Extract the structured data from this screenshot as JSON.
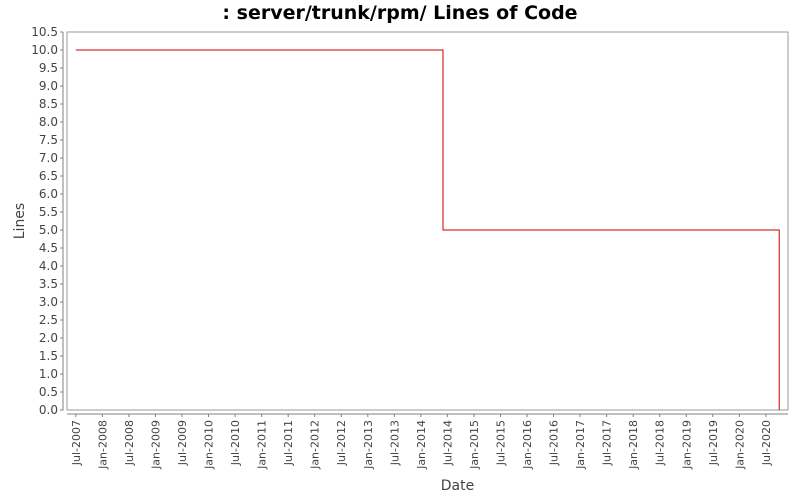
{
  "chart_data": {
    "type": "line",
    "title": ": server/trunk/rpm/ Lines of Code",
    "xlabel": "Date",
    "ylabel": "Lines",
    "ylim": [
      0,
      10.5
    ],
    "yticks": [
      "0.0",
      "0.5",
      "1.0",
      "1.5",
      "2.0",
      "2.5",
      "3.0",
      "3.5",
      "4.0",
      "4.5",
      "5.0",
      "5.5",
      "6.0",
      "6.5",
      "7.0",
      "7.5",
      "8.0",
      "8.5",
      "9.0",
      "9.5",
      "10.0",
      "10.5"
    ],
    "xticks": [
      "Jul-2007",
      "Jan-2008",
      "Jul-2008",
      "Jan-2009",
      "Jul-2009",
      "Jan-2010",
      "Jul-2010",
      "Jan-2011",
      "Jul-2011",
      "Jan-2012",
      "Jul-2012",
      "Jan-2013",
      "Jul-2013",
      "Jan-2014",
      "Jul-2014",
      "Jan-2015",
      "Jul-2015",
      "Jan-2016",
      "Jul-2016",
      "Jan-2017",
      "Jul-2017",
      "Jan-2018",
      "Jul-2018",
      "Jan-2019",
      "Jul-2019",
      "Jan-2020",
      "Jul-2020"
    ],
    "step": true,
    "grid": false,
    "series": [
      {
        "color": "#cc0000",
        "points": [
          {
            "x": "2007-07",
            "y": 10
          },
          {
            "x": "2014-06",
            "y": 10
          },
          {
            "x": "2014-06",
            "y": 5
          },
          {
            "x": "2020-10",
            "y": 5
          },
          {
            "x": "2020-10",
            "y": 0
          }
        ]
      }
    ]
  }
}
